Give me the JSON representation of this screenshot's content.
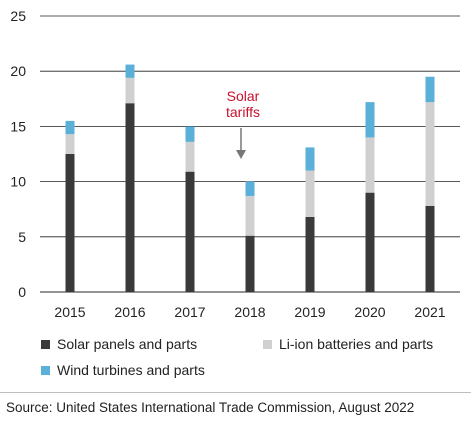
{
  "chart_data": {
    "type": "bar",
    "stacked": true,
    "categories": [
      "2015",
      "2016",
      "2017",
      "2018",
      "2019",
      "2020",
      "2021"
    ],
    "series": [
      {
        "name": "Solar panels and parts",
        "color": "#3a3a3a",
        "values": [
          12.5,
          17.1,
          10.9,
          5.1,
          6.8,
          9.0,
          7.8
        ]
      },
      {
        "name": "Li-ion batteries and parts",
        "color": "#d0d0d0",
        "values": [
          1.8,
          2.3,
          2.7,
          3.6,
          4.2,
          5.0,
          9.4
        ]
      },
      {
        "name": "Wind turbines and parts",
        "color": "#5ab0d8",
        "values": [
          1.2,
          1.2,
          1.4,
          1.3,
          2.1,
          3.2,
          2.3
        ]
      }
    ],
    "ylim": [
      0,
      25
    ],
    "yticks": [
      0,
      5,
      10,
      15,
      20,
      25
    ],
    "grid": true,
    "annotation": {
      "lines": [
        "Solar",
        "tariffs"
      ],
      "category": "2018",
      "color": "#c8102e"
    },
    "legend": "bottom"
  },
  "source": "Source: United States International Trade Commission, August 2022"
}
